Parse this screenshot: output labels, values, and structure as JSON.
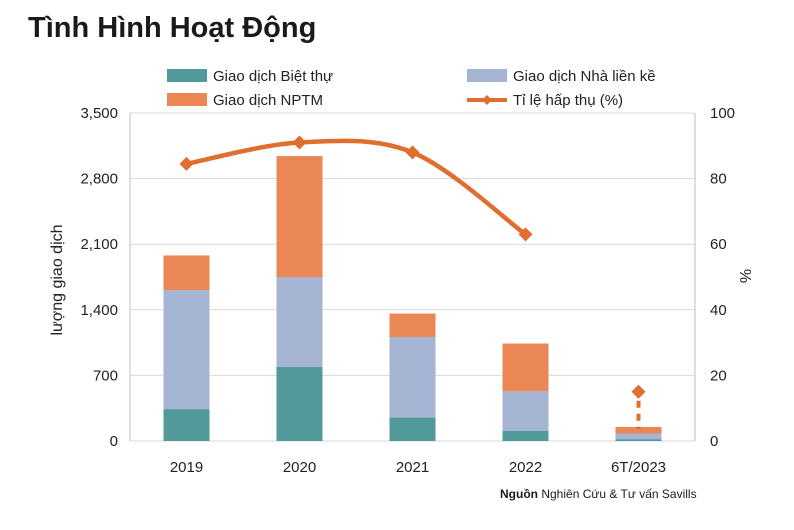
{
  "page": {
    "title": "Tình Hình Hoạt Động"
  },
  "source": {
    "label": "Nguồn",
    "text": "Nghiên Cứu & Tư vấn Savills"
  },
  "colors": {
    "villa": "#52999a",
    "townhouse": "#a5b4d3",
    "shophouse": "#ea8754",
    "absorption": "#e06e2e",
    "grid": "#d9d9d9"
  },
  "chart_data": {
    "type": "bar",
    "stacked": true,
    "categories": [
      "2019",
      "2020",
      "2021",
      "2022",
      "6T/2023"
    ],
    "series": [
      {
        "name": "Giao dịch Biệt thự",
        "type": "bar",
        "axis": "left",
        "color": "#52999a",
        "values": [
          340,
          790,
          250,
          110,
          20
        ]
      },
      {
        "name": "Giao dịch Nhà liền kề",
        "type": "bar",
        "axis": "left",
        "color": "#a5b4d3",
        "values": [
          1270,
          960,
          860,
          420,
          60
        ]
      },
      {
        "name": "Giao dịch NPTM",
        "type": "bar",
        "axis": "left",
        "color": "#ea8754",
        "values": [
          370,
          1290,
          250,
          510,
          70
        ]
      },
      {
        "name": "Tỉ lệ hấp thụ (%)",
        "type": "line",
        "axis": "right",
        "color": "#e06e2e",
        "values": [
          84.5,
          91,
          88,
          63,
          15
        ]
      }
    ],
    "ylabel": "lượng giao dịch",
    "y2label": "%",
    "ylim": [
      0,
      3500
    ],
    "y2lim": [
      0,
      100
    ],
    "yticks": [
      "3,500",
      "2,800",
      "2,100",
      "1,400",
      "700",
      "0"
    ],
    "y2ticks": [
      "100",
      "80",
      "60",
      "40",
      "20",
      "0"
    ],
    "grid": true,
    "legend": "top"
  }
}
